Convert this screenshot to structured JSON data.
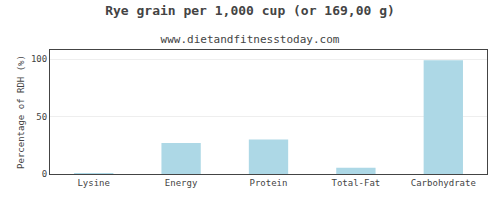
{
  "chart_data": {
    "type": "bar",
    "title": "Rye grain per 1,000 cup (or 169,00 g)",
    "subtitle": "www.dietandfitnesstoday.com",
    "categories": [
      "Lysine",
      "Energy",
      "Protein",
      "Total-Fat",
      "Carbohydrate"
    ],
    "values": [
      0.5,
      27,
      30,
      5.5,
      99
    ],
    "color": "#add8e6",
    "ylabel": "Percentage of RDH (%)",
    "ylim": [
      0,
      108
    ],
    "yticks": [
      0,
      50,
      100
    ],
    "grid": true
  }
}
